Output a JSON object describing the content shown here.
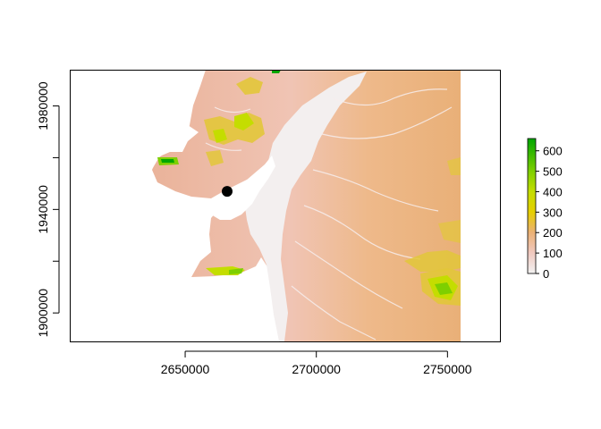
{
  "chart_data": {
    "type": "heatmap",
    "title": "",
    "xlabel": "",
    "ylabel": "",
    "xlim": [
      2606000,
      2770000
    ],
    "ylim": [
      1889000,
      1994000
    ],
    "raster_extent": {
      "x": [
        2606000,
        2755000
      ],
      "y": [
        1889000,
        1994000
      ]
    },
    "x_ticks": [
      {
        "value": 2650000,
        "label": "2650000"
      },
      {
        "value": 2700000,
        "label": "2700000"
      },
      {
        "value": 2750000,
        "label": "2750000"
      }
    ],
    "y_ticks": [
      {
        "value": 1900000,
        "label": "1900000"
      },
      {
        "value": 1920000,
        "label": null
      },
      {
        "value": 1940000,
        "label": "1940000"
      },
      {
        "value": 1960000,
        "label": null
      },
      {
        "value": 1980000,
        "label": "1980000"
      }
    ],
    "point_marker": {
      "x": 2666000,
      "y": 1947000,
      "color": "#000000"
    },
    "legend": {
      "placement": "right",
      "min": 0,
      "max": 660,
      "ticks": [
        {
          "value": 0,
          "label": "0"
        },
        {
          "value": 100,
          "label": "100"
        },
        {
          "value": 200,
          "label": "200"
        },
        {
          "value": 300,
          "label": "300"
        },
        {
          "value": 400,
          "label": "400"
        },
        {
          "value": 500,
          "label": "500"
        },
        {
          "value": 600,
          "label": "600"
        }
      ],
      "color_stops": [
        {
          "value": 0,
          "color": "#f2f2f2"
        },
        {
          "value": 100,
          "color": "#f0c9c0"
        },
        {
          "value": 200,
          "color": "#ebb176"
        },
        {
          "value": 300,
          "color": "#e6cf00"
        },
        {
          "value": 400,
          "color": "#c4dd00"
        },
        {
          "value": 500,
          "color": "#7ecf00"
        },
        {
          "value": 660,
          "color": "#00a600"
        }
      ]
    }
  }
}
